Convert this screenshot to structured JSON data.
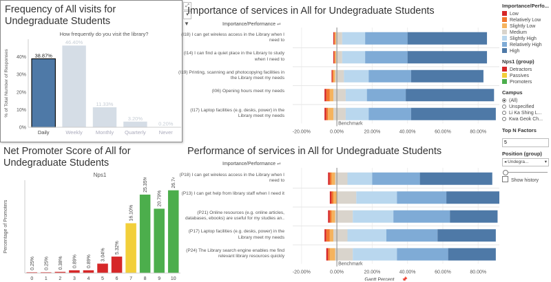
{
  "freq_panel": {
    "title": "Frequency of All visits for Undegraduate Students",
    "chart_title": "How frequently do you visit the library?",
    "ylabel": "% of Total Number of Responses",
    "ticks": [
      "0%",
      "10%",
      "20%",
      "30%",
      "40%"
    ]
  },
  "nps_panel": {
    "title": "Net Promoter Score of All for Undegraduate Students",
    "chart_title": "Nps1",
    "ylabel": "Percentage of Promoters"
  },
  "importance_panel": {
    "title": "Importance of services in All for Undegraduate Students",
    "header": "Importance/Performance",
    "benchmark": "Benchmark",
    "xlabel": "Gantt Percent",
    "ticks": [
      "-20.00%",
      "0.00%",
      "20.00%",
      "40.00%",
      "60.00%",
      "80.00%"
    ],
    "rows": [
      "(I18) I can get wireless access in the Library when I need to",
      "(I14) I can find a quiet place in the Library to study when I need to",
      "(I19) Printing, scanning and photocopying facilities in the Library meet my needs",
      "(I06) Opening hours meet my needs",
      "(I17) Laptop facilities (e.g. desks, power) in the Library meet my needs"
    ]
  },
  "performance_panel": {
    "title": "Performance of services in All for Undegraduate Students",
    "header": "Importance/Performance",
    "benchmark": "Benchmark",
    "xlabel": "Gantt Percent",
    "ticks": [
      "-20.00%",
      "0.00%",
      "20.00%",
      "40.00%",
      "60.00%",
      "80.00%"
    ],
    "rows": [
      "(P18) I can get wireless access in the Library when I need to",
      "(P13) I can get help from library staff when I need it",
      "(P21) Online resources (e.g. online articles, databases, ebooks) are useful for my studies an..",
      "(P17) Laptop facilities (e.g. desks, power) in the Library meet my needs",
      "(P24) The Library search engine enables me find relevant library resources quickly"
    ]
  },
  "sidebar": {
    "imp_legend_title": "Importance/Perfo...",
    "imp_legend": [
      {
        "label": "Low",
        "color": "#d62728"
      },
      {
        "label": "Relatively Low",
        "color": "#f2762e"
      },
      {
        "label": "Slightly Low",
        "color": "#f5b35e"
      },
      {
        "label": "Medium",
        "color": "#d9d4cc"
      },
      {
        "label": "Slightly High",
        "color": "#b9d7ee"
      },
      {
        "label": "Relatively High",
        "color": "#7fabd6"
      },
      {
        "label": "High",
        "color": "#4e79a7"
      }
    ],
    "nps_legend_title": "Nps1 (group)",
    "nps_legend": [
      {
        "label": "Detractors",
        "color": "#d62728"
      },
      {
        "label": "Passives",
        "color": "#f2cf3a"
      },
      {
        "label": "Promoters",
        "color": "#4cae4c"
      }
    ],
    "campus_title": "Campus",
    "campus_options": [
      {
        "label": "(All)",
        "selected": true
      },
      {
        "label": "Unspecified",
        "selected": false
      },
      {
        "label": "Li Ka Shing L...",
        "selected": false
      },
      {
        "label": "Kwa Geok Ch...",
        "selected": false
      }
    ],
    "topn_title": "Top N Factors",
    "topn_value": "5",
    "position_title": "Position (group)",
    "position_value": "Undegra...",
    "show_history": "Show history"
  },
  "chart_data": [
    {
      "type": "bar",
      "title": "How frequently do you visit the library?",
      "ylabel": "% of Total Number of Responses",
      "categories": [
        "Daily",
        "Weekly",
        "Monthly",
        "Quarterly",
        "Never"
      ],
      "values": [
        38.87,
        46.4,
        11.33,
        3.2,
        0.2
      ],
      "labels": [
        "38.87%",
        "46.40%",
        "11.33%",
        "3.20%",
        "0.20%"
      ],
      "ylim": [
        0,
        50
      ],
      "highlight_color": "#4e79a7",
      "muted_color": "#d5dde6"
    },
    {
      "type": "bar",
      "title": "Nps1",
      "ylabel": "Percentage of Promoters",
      "categories": [
        "0",
        "1",
        "2",
        "3",
        "4",
        "5",
        "6",
        "7",
        "8",
        "9",
        "10"
      ],
      "values": [
        0.25,
        0.25,
        0.38,
        0.89,
        0.89,
        3.04,
        5.32,
        16.1,
        25.35,
        20.79,
        26.74
      ],
      "labels": [
        "0.25%",
        "0.25%",
        "0.38%",
        "0.89%",
        "0.89%",
        "3.04%",
        "5.32%",
        "16.10%",
        "25.35%",
        "20.79%",
        "26.74%"
      ],
      "groups": [
        "Detractors",
        "Detractors",
        "Detractors",
        "Detractors",
        "Detractors",
        "Detractors",
        "Detractors",
        "Passives",
        "Promoters",
        "Promoters",
        "Promoters"
      ],
      "ylim": [
        0,
        30
      ]
    },
    {
      "type": "bar",
      "subtype": "diverging-stacked",
      "title": "Importance of services in All for Undegraduate Students",
      "xlabel": "Gantt Percent",
      "xlim": [
        -25,
        92
      ],
      "segments": [
        "Low",
        "Relatively Low",
        "Slightly Low",
        "Medium",
        "Slightly High",
        "Relatively High",
        "High"
      ],
      "rows": [
        {
          "start": -2,
          "values": [
            0.5,
            0.5,
            0.5,
            3.5,
            13,
            24,
            45
          ]
        },
        {
          "start": -2,
          "values": [
            0.5,
            0.5,
            0.5,
            3.5,
            13,
            24,
            45
          ]
        },
        {
          "start": -3,
          "values": [
            0.5,
            0.5,
            1,
            5,
            14,
            24,
            41
          ]
        },
        {
          "start": -7,
          "values": [
            1,
            2,
            2,
            7,
            12,
            22,
            50
          ]
        },
        {
          "start": -7,
          "values": [
            1,
            1,
            3,
            7,
            13,
            24,
            48
          ]
        }
      ]
    },
    {
      "type": "bar",
      "subtype": "diverging-stacked",
      "title": "Performance of services in All for Undegraduate Students",
      "xlabel": "Gantt Percent",
      "xlim": [
        -25,
        92
      ],
      "segments": [
        "Low",
        "Relatively Low",
        "Slightly Low",
        "Medium",
        "Slightly High",
        "Relatively High",
        "High"
      ],
      "rows": [
        {
          "start": -5,
          "values": [
            1,
            1,
            2,
            7,
            14,
            27,
            41
          ]
        },
        {
          "start": -4,
          "values": [
            1,
            1,
            2,
            11,
            23,
            28,
            30
          ]
        },
        {
          "start": -5,
          "values": [
            1,
            1,
            2,
            10,
            23,
            32,
            27
          ]
        },
        {
          "start": -7,
          "values": [
            1,
            2,
            2,
            8,
            22,
            29,
            33
          ]
        },
        {
          "start": -6,
          "values": [
            1,
            1,
            3,
            10,
            25,
            29,
            27
          ]
        }
      ]
    }
  ]
}
